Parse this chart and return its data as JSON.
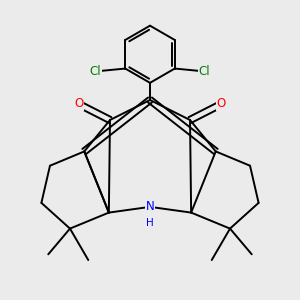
{
  "bg_color": "#ebebeb",
  "bond_color": "#000000",
  "bond_width": 1.4,
  "atom_colors": {
    "O": "#ff0000",
    "N": "#0000ff",
    "Cl": "#008000"
  },
  "font_size_atom": 8.5
}
